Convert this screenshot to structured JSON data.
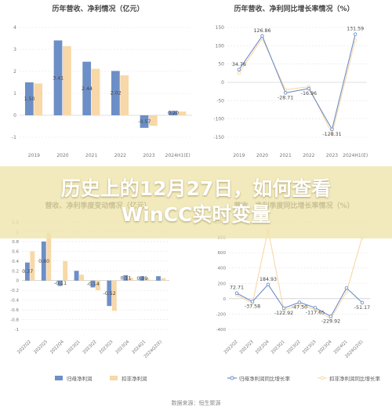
{
  "overlay": {
    "title_line1": "历史上的12月27日，如何查看",
    "title_line2": "WinCC实时变量"
  },
  "source": "数据来源：恒生聚源",
  "chart_data": [
    {
      "type": "bar",
      "title": "历年营收、净利情况（亿元）",
      "categories": [
        "2019",
        "2020",
        "2021",
        "2022",
        "2023",
        "2024H1(E)"
      ],
      "ylim": [
        -1,
        4
      ],
      "yticks": [
        -1,
        0,
        1,
        2,
        3,
        4
      ],
      "series": [
        {
          "values": [
            1.5,
            3.41,
            2.44,
            2.02,
            -0.57,
            0.2
          ],
          "color": "#6d8fc7"
        },
        {
          "values": [
            1.45,
            3.15,
            2.12,
            1.82,
            -0.48,
            0.17
          ],
          "color": "#f8d8a8"
        }
      ],
      "data_labels": [
        "1.50",
        "3.41",
        "2.44",
        "2.02",
        "-0.57",
        "0.20"
      ]
    },
    {
      "type": "line",
      "title": "历年营收、净利同比增长率情况（%）",
      "categories": [
        "2019",
        "2020",
        "2021",
        "2022",
        "2023",
        "2024H1(E)"
      ],
      "ylim": [
        -150,
        150
      ],
      "yticks": [
        -150,
        -100,
        -50,
        0,
        50,
        100,
        150
      ],
      "series": [
        {
          "values": [
            34.76,
            126.86,
            -28.71,
            -16.96,
            -128.31,
            131.59
          ],
          "color": "#6d8fc7"
        },
        {
          "values": [
            25,
            120,
            -20,
            -12,
            -140,
            115
          ],
          "color": "#f8d8a8"
        }
      ],
      "data_labels": [
        "34.76",
        "126.86",
        "-28.71",
        "-16.96",
        "-128.31",
        "131.59"
      ]
    },
    {
      "type": "bar",
      "title": "营收、净利季度变动情况（亿元）",
      "categories": [
        "2022Q2",
        "2022Q3",
        "2022Q4",
        "2023Q1",
        "2023Q2",
        "2023Q3",
        "2023Q4",
        "2024Q1",
        "2024Q2(E)"
      ],
      "ylim": [
        -1,
        1.2
      ],
      "yticks": [
        -1,
        -0.8,
        -0.6,
        -0.4,
        -0.2,
        0,
        0.2,
        0.4,
        0.6,
        0.8,
        1,
        1.2
      ],
      "series": [
        {
          "name": "归母净利润",
          "values": [
            0.37,
            0.8,
            -0.11,
            0.2,
            -0.14,
            -0.52,
            0.11,
            0.09,
            0.09
          ],
          "color": "#6d8fc7"
        },
        {
          "name": "扣非净利润",
          "values": [
            0.6,
            0.98,
            0.4,
            0.12,
            -0.2,
            -0.62,
            0.06,
            0.05,
            0.05
          ],
          "color": "#f8d8a8"
        }
      ],
      "data_labels": [
        "0.37",
        "0.80",
        "-0.11",
        "",
        "-0.14",
        "-0.52",
        "0.11",
        "0.09",
        ""
      ]
    },
    {
      "type": "line",
      "title": "营收、净利季度同比增长率情况（%）",
      "categories": [
        "2022Q2",
        "2022Q3",
        "2022Q4",
        "2023Q1",
        "2023Q2",
        "2023Q3",
        "2023Q4",
        "2024Q1",
        "2024Q2(E)"
      ],
      "ylim": [
        -400,
        1000
      ],
      "yticks": [
        -400,
        -200,
        0,
        200,
        400,
        600,
        800,
        1000
      ],
      "series": [
        {
          "name": "归母净利润同比增长率",
          "values": [
            72.71,
            -37.58,
            184.93,
            -122.92,
            -47.5,
            -117.65,
            -229.92,
            140.0,
            -51.17
          ],
          "color": "#6d8fc7"
        },
        {
          "name": "扣非净利润同比增长率",
          "values": [
            50,
            -60,
            900,
            -150,
            -80,
            -140,
            -260,
            90,
            800
          ],
          "color": "#f8d8a8"
        }
      ],
      "data_labels": [
        "72.71",
        "-37.58",
        "184.93",
        "-122.92",
        "-47.50",
        "-117.65",
        "-229.92",
        "",
        "-51.17"
      ]
    }
  ]
}
